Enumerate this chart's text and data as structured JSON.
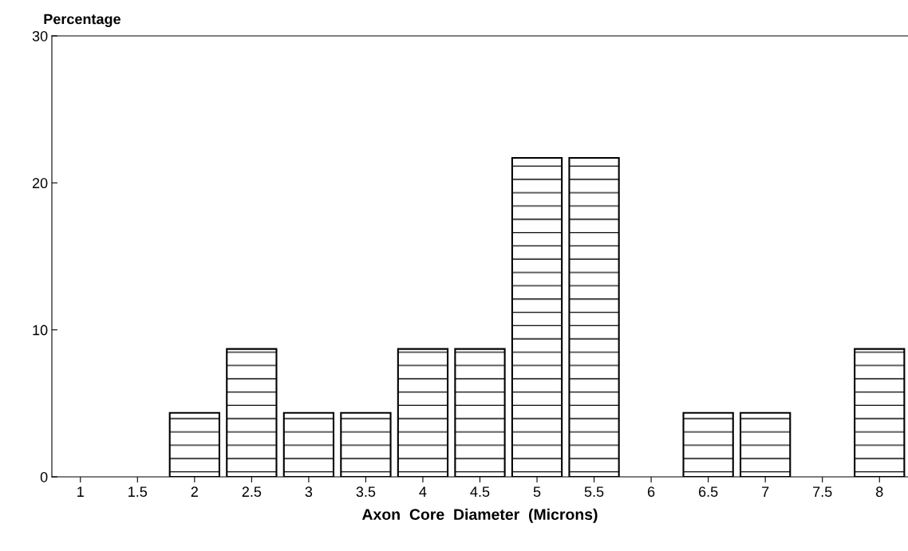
{
  "chart_data": {
    "type": "bar",
    "ylabel": "Percentage",
    "xlabel": "Axon  Core  Diameter  (Microns)",
    "categories": [
      "1",
      "1.5",
      "2",
      "2.5",
      "3",
      "3.5",
      "4",
      "4.5",
      "5",
      "5.5",
      "6",
      "6.5",
      "7",
      "7.5",
      "8"
    ],
    "values": [
      0,
      0,
      4.35,
      8.7,
      4.35,
      4.35,
      8.7,
      8.7,
      21.7,
      21.7,
      0,
      4.35,
      4.35,
      0,
      8.7
    ],
    "color": "#000000",
    "ylim": [
      0,
      30
    ],
    "yticks": [
      0,
      10,
      20,
      30
    ],
    "grid": false
  }
}
